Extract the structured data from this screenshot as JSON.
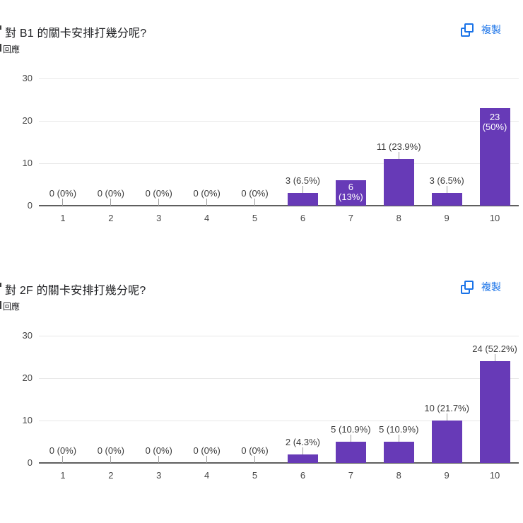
{
  "ui": {
    "copy_label": "複製",
    "colors": {
      "bar": "#673ab7",
      "accent_blue": "#1a73e8",
      "axis_line": "#5f5f5f",
      "gridline": "#e8e8e8",
      "text_primary": "#202124",
      "text_secondary": "#3c3c3c"
    }
  },
  "chart_data": [
    {
      "type": "bar",
      "title": "對 B1 的關卡安排打幾分呢?",
      "responses_label": "回應",
      "categories": [
        "1",
        "2",
        "3",
        "4",
        "5",
        "6",
        "7",
        "8",
        "9",
        "10"
      ],
      "values": [
        0,
        0,
        0,
        0,
        0,
        3,
        6,
        11,
        3,
        23
      ],
      "labels": [
        "0 (0%)",
        "0 (0%)",
        "0 (0%)",
        "0 (0%)",
        "0 (0%)",
        "3 (6.5%)",
        "6 (13%)",
        "11 (23.9%)",
        "3 (6.5%)",
        "23 (50%)"
      ],
      "label_placement": [
        "above",
        "above",
        "above",
        "above",
        "above",
        "above",
        "inside",
        "above",
        "above",
        "inside"
      ],
      "xlabel": "",
      "ylabel": "",
      "ylim": [
        0,
        30
      ],
      "yticks": [
        0,
        10,
        20,
        30
      ],
      "grid": true,
      "legend": "none",
      "bar_color": "#673ab7"
    },
    {
      "type": "bar",
      "title": "對 2F 的關卡安排打幾分呢?",
      "responses_label": "回應",
      "categories": [
        "1",
        "2",
        "3",
        "4",
        "5",
        "6",
        "7",
        "8",
        "9",
        "10"
      ],
      "values": [
        0,
        0,
        0,
        0,
        0,
        2,
        5,
        5,
        10,
        24
      ],
      "labels": [
        "0 (0%)",
        "0 (0%)",
        "0 (0%)",
        "0 (0%)",
        "0 (0%)",
        "2 (4.3%)",
        "5 (10.9%)",
        "5 (10.9%)",
        "10 (21.7%)",
        "24 (52.2%)"
      ],
      "label_placement": [
        "above",
        "above",
        "above",
        "above",
        "above",
        "above",
        "above",
        "above",
        "above",
        "above"
      ],
      "xlabel": "",
      "ylabel": "",
      "ylim": [
        0,
        30
      ],
      "yticks": [
        0,
        10,
        20,
        30
      ],
      "grid": true,
      "legend": "none",
      "bar_color": "#673ab7"
    }
  ]
}
